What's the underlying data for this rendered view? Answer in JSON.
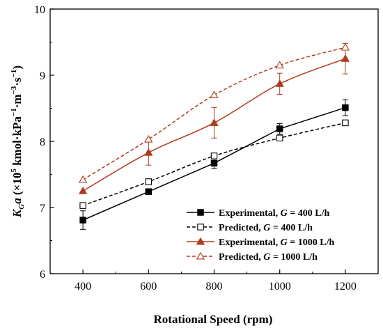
{
  "chart_data": {
    "type": "line",
    "xlabel": "Rotational Speed (rpm)",
    "ylabel": {
      "main": "K",
      "sub": "G",
      "italic_var": "a",
      "unit_pre": " (×10",
      "unit_exp": "5",
      "unit_mid": " kmol·kPa",
      "unit_exp2": "−1",
      "unit_mid2": "·m",
      "unit_exp3": "−3",
      "unit_mid3": "·s",
      "unit_exp4": "−1",
      "unit_post": ")"
    },
    "xlim": [
      300,
      1300
    ],
    "ylim": [
      6,
      10
    ],
    "xticks": [
      400,
      600,
      800,
      1000,
      1200
    ],
    "yticks": [
      6,
      7,
      8,
      9,
      10
    ],
    "x": [
      400,
      600,
      800,
      1000,
      1200
    ],
    "series": [
      {
        "name_pre": "Experimental, ",
        "name_var": "G",
        "name_post": " = 400 L/h",
        "values": [
          6.81,
          7.24,
          7.67,
          8.19,
          8.51
        ],
        "errors": [
          0.14,
          0.0,
          0.08,
          0.08,
          0.12
        ],
        "color": "#000000",
        "marker": "square-filled",
        "dash": "solid",
        "fit": "linear"
      },
      {
        "name_pre": "Predicted, ",
        "name_var": "G",
        "name_post": " = 400 L/h",
        "values": [
          7.03,
          7.39,
          7.78,
          8.05,
          8.28
        ],
        "errors": [],
        "color": "#000000",
        "marker": "square-open",
        "dash": "dashed",
        "fit": "curve"
      },
      {
        "name_pre": "Experimental, ",
        "name_var": "G",
        "name_post": " = 1000 L/h",
        "values": [
          7.25,
          7.83,
          8.28,
          8.87,
          9.25
        ],
        "errors": [
          0.0,
          0.19,
          0.23,
          0.16,
          0.23
        ],
        "color": "#b03a1e",
        "marker": "triangle-filled",
        "dash": "solid",
        "fit": "curve"
      },
      {
        "name_pre": "Predicted, ",
        "name_var": "G",
        "name_post": " = 1000 L/h",
        "values": [
          7.42,
          8.03,
          8.7,
          9.15,
          9.42
        ],
        "errors": [],
        "color": "#b03a1e",
        "marker": "triangle-open",
        "dash": "dashed",
        "fit": "curve"
      }
    ],
    "legend": "bottom-right"
  }
}
